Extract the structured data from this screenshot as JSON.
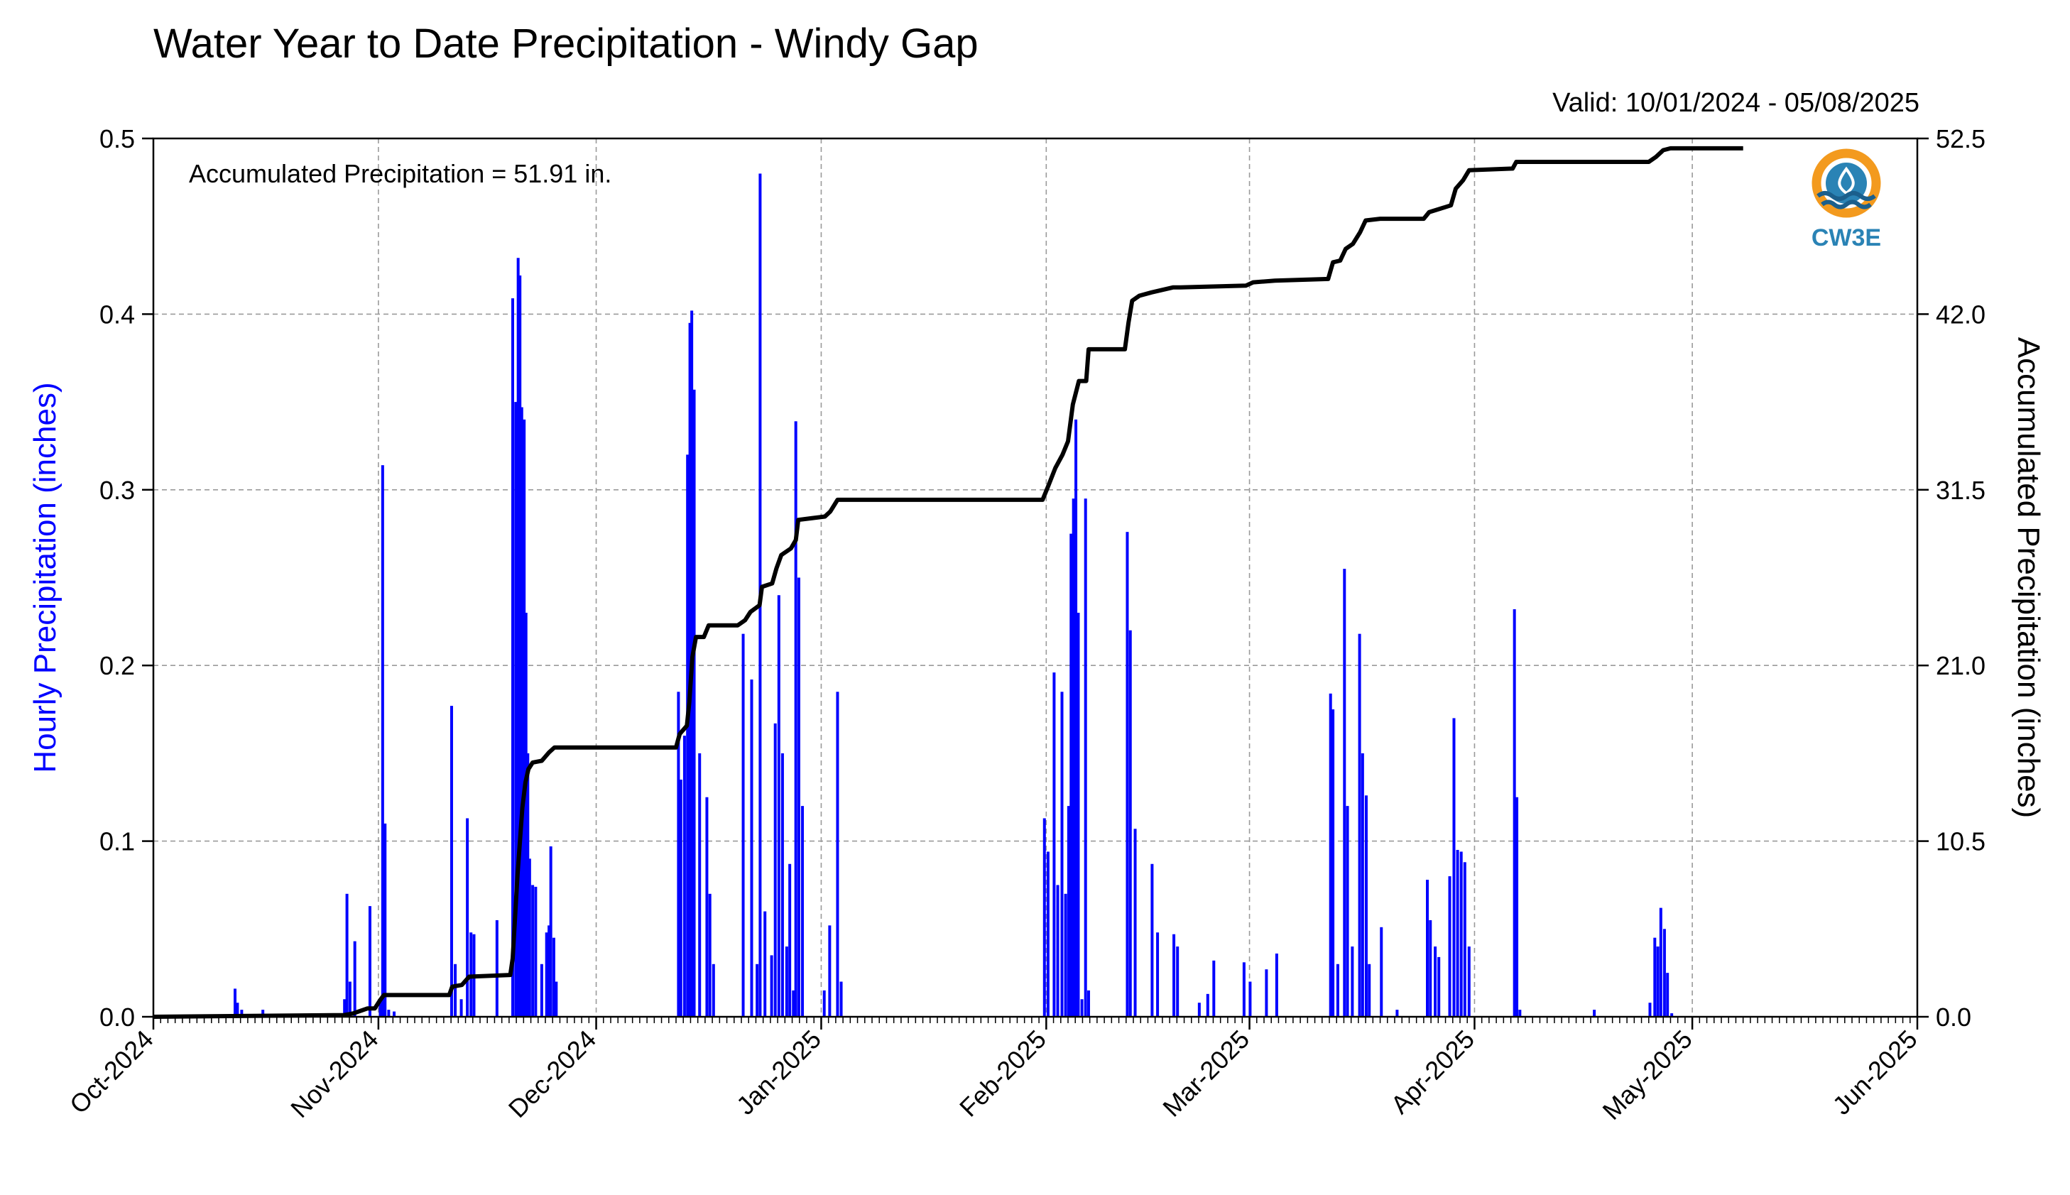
{
  "page": {
    "title": "Water Year to Date Precipitation - Windy Gap",
    "valid_range": "Valid: 10/01/2024 - 05/08/2025"
  },
  "logo": {
    "text": "CW3E",
    "colors": {
      "orange": "#f39a1e",
      "blue": "#2a83b5",
      "dark_blue": "#1b5f8c"
    }
  },
  "chart_data": {
    "type": "bar",
    "title": "Water Year to Date Precipitation - Windy Gap",
    "annotation": "Accumulated Precipitation = 51.91 in.",
    "grid": true,
    "x": {
      "start": "2024-10-01",
      "end": "2025-06-01",
      "tick_labels": [
        "Oct-2024",
        "Nov-2024",
        "Dec-2024",
        "Jan-2025",
        "Feb-2025",
        "Mar-2025",
        "Apr-2025",
        "May-2025",
        "Jun-2025"
      ],
      "tick_dates": [
        "2024-10-01",
        "2024-11-01",
        "2024-12-01",
        "2025-01-01",
        "2025-02-01",
        "2025-03-01",
        "2025-04-01",
        "2025-05-01",
        "2025-06-01"
      ]
    },
    "y_left": {
      "label": "Hourly Precipitation (inches)",
      "lim": [
        0,
        0.5
      ],
      "ticks": [
        "0.0",
        "0.1",
        "0.2",
        "0.3",
        "0.4",
        "0.5"
      ],
      "color": "#0000ff"
    },
    "y_right": {
      "label": "Accumulated Precipitation (inches)",
      "lim": [
        0,
        52.5
      ],
      "ticks": [
        "0.0",
        "10.5",
        "21.0",
        "31.5",
        "42.0",
        "52.5"
      ],
      "color": "#000000"
    },
    "series": [
      {
        "type": "bar",
        "axis": "left",
        "color": "#0000ff",
        "points": [
          [
            "2024-10-12 06:00",
            0.016
          ],
          [
            "2024-10-12 14:00",
            0.008
          ],
          [
            "2024-10-13 04:00",
            0.004
          ],
          [
            "2024-10-16 02:00",
            0.004
          ],
          [
            "2024-10-27 08:00",
            0.01
          ],
          [
            "2024-10-27 16:00",
            0.07
          ],
          [
            "2024-10-28 02:00",
            0.02
          ],
          [
            "2024-10-28 18:00",
            0.043
          ],
          [
            "2024-10-30 20:00",
            0.063
          ],
          [
            "2024-11-01 06:00",
            0.01
          ],
          [
            "2024-11-01 14:00",
            0.314
          ],
          [
            "2024-11-01 22:00",
            0.11
          ],
          [
            "2024-11-02 10:00",
            0.004
          ],
          [
            "2024-11-03 04:00",
            0.003
          ],
          [
            "2024-11-11 02:00",
            0.177
          ],
          [
            "2024-11-11 14:00",
            0.03
          ],
          [
            "2024-11-12 10:00",
            0.01
          ],
          [
            "2024-11-13 06:00",
            0.113
          ],
          [
            "2024-11-13 18:00",
            0.048
          ],
          [
            "2024-11-14 04:00",
            0.047
          ],
          [
            "2024-11-17 08:00",
            0.055
          ],
          [
            "2024-11-19 12:00",
            0.409
          ],
          [
            "2024-11-19 22:00",
            0.35
          ],
          [
            "2024-11-20 06:00",
            0.432
          ],
          [
            "2024-11-20 12:00",
            0.422
          ],
          [
            "2024-11-20 18:00",
            0.347
          ],
          [
            "2024-11-21 02:00",
            0.34
          ],
          [
            "2024-11-21 08:00",
            0.23
          ],
          [
            "2024-11-21 14:00",
            0.15
          ],
          [
            "2024-11-21 20:00",
            0.09
          ],
          [
            "2024-11-22 06:00",
            0.075
          ],
          [
            "2024-11-22 16:00",
            0.074
          ],
          [
            "2024-11-23 12:00",
            0.03
          ],
          [
            "2024-11-24 04:00",
            0.048
          ],
          [
            "2024-11-24 12:00",
            0.052
          ],
          [
            "2024-11-24 18:00",
            0.097
          ],
          [
            "2024-11-25 04:00",
            0.045
          ],
          [
            "2024-11-25 12:00",
            0.02
          ],
          [
            "2024-12-12 08:00",
            0.185
          ],
          [
            "2024-12-12 16:00",
            0.135
          ],
          [
            "2024-12-13 04:00",
            0.16
          ],
          [
            "2024-12-13 14:00",
            0.32
          ],
          [
            "2024-12-13 22:00",
            0.395
          ],
          [
            "2024-12-14 04:00",
            0.402
          ],
          [
            "2024-12-14 12:00",
            0.357
          ],
          [
            "2024-12-15 06:00",
            0.15
          ],
          [
            "2024-12-16 06:00",
            0.125
          ],
          [
            "2024-12-16 16:00",
            0.07
          ],
          [
            "2024-12-17 04:00",
            0.03
          ],
          [
            "2024-12-21 06:00",
            0.218
          ],
          [
            "2024-12-22 10:00",
            0.192
          ],
          [
            "2024-12-23 04:00",
            0.03
          ],
          [
            "2024-12-23 14:00",
            0.48
          ],
          [
            "2024-12-24 06:00",
            0.06
          ],
          [
            "2024-12-25 04:00",
            0.035
          ],
          [
            "2024-12-25 16:00",
            0.167
          ],
          [
            "2024-12-26 04:00",
            0.24
          ],
          [
            "2024-12-26 16:00",
            0.15
          ],
          [
            "2024-12-27 06:00",
            0.04
          ],
          [
            "2024-12-27 16:00",
            0.087
          ],
          [
            "2024-12-28 04:00",
            0.015
          ],
          [
            "2024-12-28 12:00",
            0.339
          ],
          [
            "2024-12-28 22:00",
            0.25
          ],
          [
            "2024-12-29 10:00",
            0.12
          ],
          [
            "2025-01-01 10:00",
            0.015
          ],
          [
            "2025-01-02 04:00",
            0.052
          ],
          [
            "2025-01-03 06:00",
            0.185
          ],
          [
            "2025-01-03 18:00",
            0.02
          ],
          [
            "2025-01-31 18:00",
            0.113
          ],
          [
            "2025-02-01 06:00",
            0.094
          ],
          [
            "2025-02-02 02:00",
            0.196
          ],
          [
            "2025-02-02 14:00",
            0.075
          ],
          [
            "2025-02-03 04:00",
            0.185
          ],
          [
            "2025-02-03 16:00",
            0.07
          ],
          [
            "2025-02-04 02:00",
            0.12
          ],
          [
            "2025-02-04 10:00",
            0.275
          ],
          [
            "2025-02-04 18:00",
            0.295
          ],
          [
            "2025-02-05 02:00",
            0.34
          ],
          [
            "2025-02-05 10:00",
            0.23
          ],
          [
            "2025-02-05 22:00",
            0.01
          ],
          [
            "2025-02-06 10:00",
            0.295
          ],
          [
            "2025-02-06 20:00",
            0.015
          ],
          [
            "2025-02-12 04:00",
            0.276
          ],
          [
            "2025-02-12 14:00",
            0.22
          ],
          [
            "2025-02-13 06:00",
            0.107
          ],
          [
            "2025-02-15 14:00",
            0.087
          ],
          [
            "2025-02-16 08:00",
            0.048
          ],
          [
            "2025-02-18 14:00",
            0.047
          ],
          [
            "2025-02-19 02:00",
            0.04
          ],
          [
            "2025-02-22 02:00",
            0.008
          ],
          [
            "2025-02-23 06:00",
            0.013
          ],
          [
            "2025-02-24 02:00",
            0.032
          ],
          [
            "2025-02-28 06:00",
            0.031
          ],
          [
            "2025-03-01 02:00",
            0.02
          ],
          [
            "2025-03-03 08:00",
            0.027
          ],
          [
            "2025-03-04 18:00",
            0.036
          ],
          [
            "2025-03-12 04:00",
            0.184
          ],
          [
            "2025-03-12 12:00",
            0.175
          ],
          [
            "2025-03-13 04:00",
            0.03
          ],
          [
            "2025-03-14 02:00",
            0.255
          ],
          [
            "2025-03-14 12:00",
            0.12
          ],
          [
            "2025-03-15 04:00",
            0.04
          ],
          [
            "2025-03-16 04:00",
            0.218
          ],
          [
            "2025-03-16 14:00",
            0.15
          ],
          [
            "2025-03-17 02:00",
            0.126
          ],
          [
            "2025-03-17 12:00",
            0.03
          ],
          [
            "2025-03-19 04:00",
            0.051
          ],
          [
            "2025-03-21 08:00",
            0.004
          ],
          [
            "2025-03-25 12:00",
            0.078
          ],
          [
            "2025-03-25 22:00",
            0.055
          ],
          [
            "2025-03-26 14:00",
            0.04
          ],
          [
            "2025-03-27 02:00",
            0.034
          ],
          [
            "2025-03-28 14:00",
            0.08
          ],
          [
            "2025-03-29 04:00",
            0.17
          ],
          [
            "2025-03-29 16:00",
            0.095
          ],
          [
            "2025-03-30 04:00",
            0.094
          ],
          [
            "2025-03-30 16:00",
            0.088
          ],
          [
            "2025-03-31 06:00",
            0.04
          ],
          [
            "2025-04-06 12:00",
            0.232
          ],
          [
            "2025-04-06 20:00",
            0.125
          ],
          [
            "2025-04-07 06:00",
            0.004
          ],
          [
            "2025-04-17 12:00",
            0.004
          ],
          [
            "2025-04-25 04:00",
            0.008
          ],
          [
            "2025-04-25 20:00",
            0.045
          ],
          [
            "2025-04-26 06:00",
            0.04
          ],
          [
            "2025-04-26 16:00",
            0.062
          ],
          [
            "2025-04-27 04:00",
            0.05
          ],
          [
            "2025-04-27 14:00",
            0.025
          ],
          [
            "2025-04-28 04:00",
            0.002
          ]
        ]
      },
      {
        "type": "line",
        "axis": "right",
        "color": "#000000",
        "points": [
          [
            "2024-10-01 00:00",
            0.0
          ],
          [
            "2024-10-27 06:00",
            0.1
          ],
          [
            "2024-10-28 12:00",
            0.2
          ],
          [
            "2024-10-30 12:00",
            0.5
          ],
          [
            "2024-10-31 12:00",
            0.5
          ],
          [
            "2024-11-01 06:00",
            1.0
          ],
          [
            "2024-11-01 18:00",
            1.3
          ],
          [
            "2024-11-10 18:00",
            1.3
          ],
          [
            "2024-11-11 04:00",
            1.8
          ],
          [
            "2024-11-12 12:00",
            1.9
          ],
          [
            "2024-11-13 12:00",
            2.4
          ],
          [
            "2024-11-19 04:00",
            2.5
          ],
          [
            "2024-11-19 12:00",
            3.5
          ],
          [
            "2024-11-19 20:00",
            6.0
          ],
          [
            "2024-11-20 04:00",
            8.5
          ],
          [
            "2024-11-20 12:00",
            10.5
          ],
          [
            "2024-11-20 20:00",
            12.5
          ],
          [
            "2024-11-21 06:00",
            14.0
          ],
          [
            "2024-11-21 16:00",
            14.8
          ],
          [
            "2024-11-22 06:00",
            15.2
          ],
          [
            "2024-11-23 12:00",
            15.3
          ],
          [
            "2024-11-24 12:00",
            15.8
          ],
          [
            "2024-11-25 06:00",
            16.1
          ],
          [
            "2024-12-12 00:00",
            16.1
          ],
          [
            "2024-12-12 12:00",
            16.9
          ],
          [
            "2024-12-13 12:00",
            17.4
          ],
          [
            "2024-12-13 20:00",
            18.8
          ],
          [
            "2024-12-14 06:00",
            21.5
          ],
          [
            "2024-12-14 18:00",
            22.7
          ],
          [
            "2024-12-15 20:00",
            22.7
          ],
          [
            "2024-12-16 12:00",
            23.4
          ],
          [
            "2024-12-20 12:00",
            23.4
          ],
          [
            "2024-12-21 12:00",
            23.7
          ],
          [
            "2024-12-22 06:00",
            24.2
          ],
          [
            "2024-12-23 12:00",
            24.6
          ],
          [
            "2024-12-23 20:00",
            25.7
          ],
          [
            "2024-12-25 06:00",
            25.9
          ],
          [
            "2024-12-25 20:00",
            26.8
          ],
          [
            "2024-12-26 12:00",
            27.6
          ],
          [
            "2024-12-27 20:00",
            28.0
          ],
          [
            "2024-12-28 12:00",
            28.5
          ],
          [
            "2024-12-28 20:00",
            29.7
          ],
          [
            "2025-01-01 12:00",
            29.9
          ],
          [
            "2025-01-02 06:00",
            30.2
          ],
          [
            "2025-01-03 06:00",
            30.9
          ],
          [
            "2025-01-31 12:00",
            30.9
          ],
          [
            "2025-02-01 06:00",
            31.7
          ],
          [
            "2025-02-02 06:00",
            32.8
          ],
          [
            "2025-02-03 06:00",
            33.6
          ],
          [
            "2025-02-04 00:00",
            34.4
          ],
          [
            "2025-02-04 16:00",
            36.6
          ],
          [
            "2025-02-05 12:00",
            38.0
          ],
          [
            "2025-02-06 12:00",
            38.0
          ],
          [
            "2025-02-06 20:00",
            39.9
          ],
          [
            "2025-02-11 20:00",
            39.9
          ],
          [
            "2025-02-12 08:00",
            41.5
          ],
          [
            "2025-02-12 20:00",
            42.8
          ],
          [
            "2025-02-13 20:00",
            43.1
          ],
          [
            "2025-02-15 12:00",
            43.3
          ],
          [
            "2025-02-18 12:00",
            43.6
          ],
          [
            "2025-02-19 12:00",
            43.6
          ],
          [
            "2025-02-28 12:00",
            43.7
          ],
          [
            "2025-03-01 12:00",
            43.9
          ],
          [
            "2025-03-04 12:00",
            44.0
          ],
          [
            "2025-03-11 20:00",
            44.1
          ],
          [
            "2025-03-12 12:00",
            45.1
          ],
          [
            "2025-03-13 12:00",
            45.2
          ],
          [
            "2025-03-14 06:00",
            45.9
          ],
          [
            "2025-03-15 06:00",
            46.2
          ],
          [
            "2025-03-16 06:00",
            46.9
          ],
          [
            "2025-03-17 00:00",
            47.6
          ],
          [
            "2025-03-19 00:00",
            47.7
          ],
          [
            "2025-03-25 00:00",
            47.7
          ],
          [
            "2025-03-25 18:00",
            48.1
          ],
          [
            "2025-03-27 06:00",
            48.3
          ],
          [
            "2025-03-28 18:00",
            48.5
          ],
          [
            "2025-03-29 10:00",
            49.5
          ],
          [
            "2025-03-30 10:00",
            50.0
          ],
          [
            "2025-03-31 06:00",
            50.6
          ],
          [
            "2025-04-06 06:00",
            50.7
          ],
          [
            "2025-04-06 18:00",
            51.1
          ],
          [
            "2025-04-25 00:00",
            51.1
          ],
          [
            "2025-04-26 00:00",
            51.4
          ],
          [
            "2025-04-27 00:00",
            51.8
          ],
          [
            "2025-04-28 00:00",
            51.91
          ],
          [
            "2025-05-08 00:00",
            51.91
          ]
        ]
      }
    ]
  }
}
